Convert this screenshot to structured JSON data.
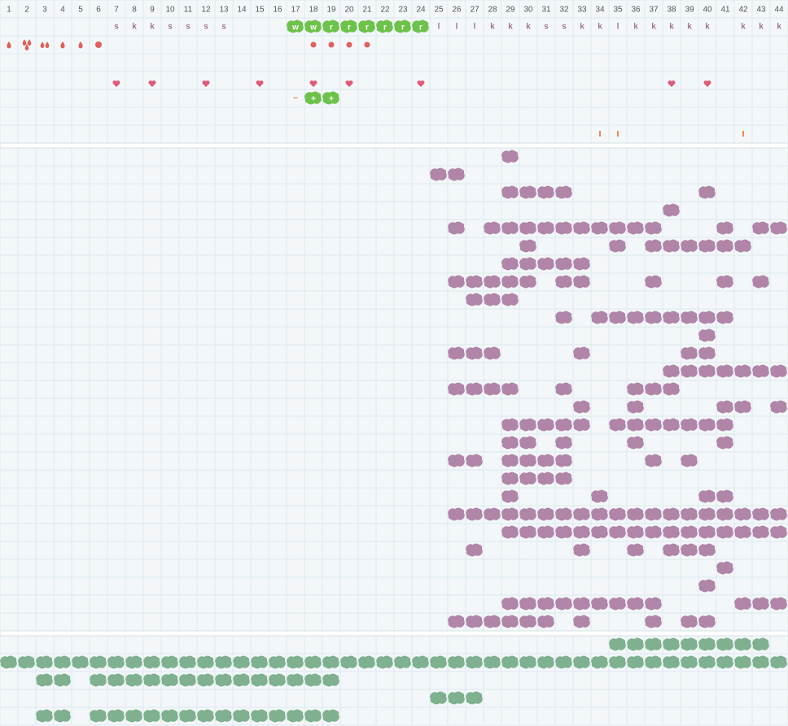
{
  "columns": [
    1,
    2,
    3,
    4,
    5,
    6,
    7,
    8,
    9,
    10,
    11,
    12,
    13,
    14,
    15,
    16,
    17,
    18,
    19,
    20,
    21,
    22,
    23,
    24,
    25,
    26,
    27,
    28,
    29,
    30,
    31,
    32,
    33,
    34,
    35,
    36,
    37,
    38,
    39,
    40,
    41,
    42,
    43,
    44
  ],
  "letter_row": [
    null,
    null,
    null,
    null,
    null,
    null,
    "s",
    "k",
    "k",
    "s",
    "s",
    "s",
    "s",
    null,
    null,
    null,
    "w",
    "w",
    "r",
    "r",
    "r",
    "r",
    "r",
    "r",
    "l",
    "l",
    "l",
    "k",
    "k",
    "k",
    "s",
    "s",
    "k",
    "k",
    "l",
    "k",
    "k",
    "k",
    "k",
    "k",
    null,
    "k",
    "k",
    "k"
  ],
  "sign_row": [
    null,
    null,
    null,
    null,
    null,
    null,
    null,
    null,
    null,
    null,
    null,
    null,
    null,
    null,
    null,
    null,
    "−",
    "+",
    "+",
    null,
    null,
    null,
    null,
    null,
    null,
    null,
    null,
    null,
    null,
    null,
    null,
    null,
    null,
    null,
    null,
    null,
    null,
    null,
    null,
    null,
    null,
    null,
    null,
    null
  ]
}
